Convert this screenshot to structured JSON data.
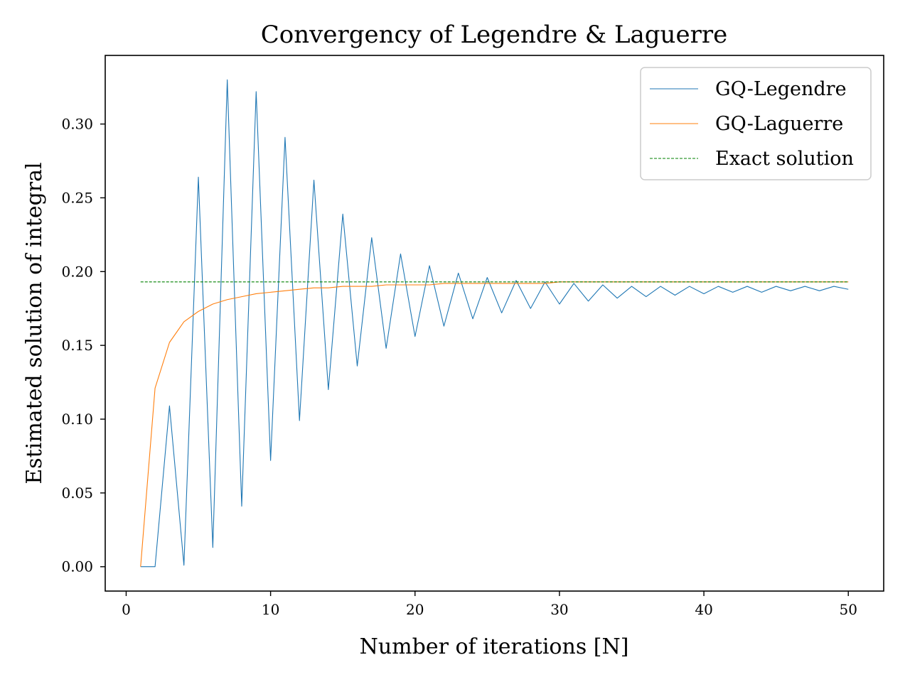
{
  "chart_data": {
    "type": "line",
    "title": "Convergency of Legendre & Laguerre",
    "xlabel": "Number of iterations [N]",
    "ylabel": "Estimated solution of integral",
    "xlim": [
      -1.45,
      52.45
    ],
    "ylim": [
      -0.0165,
      0.3465
    ],
    "xticks": [
      0,
      10,
      20,
      30,
      40,
      50
    ],
    "xtick_labels": [
      "0",
      "10",
      "20",
      "30",
      "40",
      "50"
    ],
    "yticks": [
      0.0,
      0.05,
      0.1,
      0.15,
      0.2,
      0.25,
      0.3
    ],
    "ytick_labels": [
      "0.00",
      "0.05",
      "0.10",
      "0.15",
      "0.20",
      "0.25",
      "0.30"
    ],
    "grid": false,
    "legend_position": "top-right",
    "x": [
      1,
      2,
      3,
      4,
      5,
      6,
      7,
      8,
      9,
      10,
      11,
      12,
      13,
      14,
      15,
      16,
      17,
      18,
      19,
      20,
      21,
      22,
      23,
      24,
      25,
      26,
      27,
      28,
      29,
      30,
      31,
      32,
      33,
      34,
      35,
      36,
      37,
      38,
      39,
      40,
      41,
      42,
      43,
      44,
      45,
      46,
      47,
      48,
      49,
      50
    ],
    "series": [
      {
        "name": "GQ-Legendre",
        "color": "#1f77b4",
        "style": "solid",
        "values": [
          0.0,
          0.0,
          0.109,
          0.001,
          0.264,
          0.013,
          0.33,
          0.041,
          0.322,
          0.072,
          0.291,
          0.099,
          0.262,
          0.12,
          0.239,
          0.136,
          0.223,
          0.148,
          0.212,
          0.156,
          0.204,
          0.163,
          0.199,
          0.168,
          0.196,
          0.172,
          0.194,
          0.175,
          0.193,
          0.178,
          0.192,
          0.18,
          0.191,
          0.182,
          0.19,
          0.183,
          0.19,
          0.184,
          0.19,
          0.185,
          0.19,
          0.186,
          0.19,
          0.186,
          0.19,
          0.187,
          0.19,
          0.187,
          0.19,
          0.188
        ]
      },
      {
        "name": "GQ-Laguerre",
        "color": "#ff7f0e",
        "style": "solid",
        "values": [
          0.0,
          0.121,
          0.152,
          0.166,
          0.173,
          0.178,
          0.181,
          0.183,
          0.185,
          0.186,
          0.187,
          0.188,
          0.189,
          0.189,
          0.19,
          0.19,
          0.19,
          0.191,
          0.191,
          0.191,
          0.191,
          0.192,
          0.192,
          0.192,
          0.192,
          0.192,
          0.192,
          0.192,
          0.192,
          0.193,
          0.193,
          0.193,
          0.193,
          0.193,
          0.193,
          0.193,
          0.193,
          0.193,
          0.193,
          0.193,
          0.193,
          0.193,
          0.193,
          0.193,
          0.193,
          0.193,
          0.193,
          0.193,
          0.193,
          0.193
        ]
      },
      {
        "name": "Exact solution",
        "color": "#008000",
        "style": "dashed",
        "values": [
          0.193,
          0.193,
          0.193,
          0.193,
          0.193,
          0.193,
          0.193,
          0.193,
          0.193,
          0.193,
          0.193,
          0.193,
          0.193,
          0.193,
          0.193,
          0.193,
          0.193,
          0.193,
          0.193,
          0.193,
          0.193,
          0.193,
          0.193,
          0.193,
          0.193,
          0.193,
          0.193,
          0.193,
          0.193,
          0.193,
          0.193,
          0.193,
          0.193,
          0.193,
          0.193,
          0.193,
          0.193,
          0.193,
          0.193,
          0.193,
          0.193,
          0.193,
          0.193,
          0.193,
          0.193,
          0.193,
          0.193,
          0.193,
          0.193,
          0.193
        ]
      }
    ]
  }
}
